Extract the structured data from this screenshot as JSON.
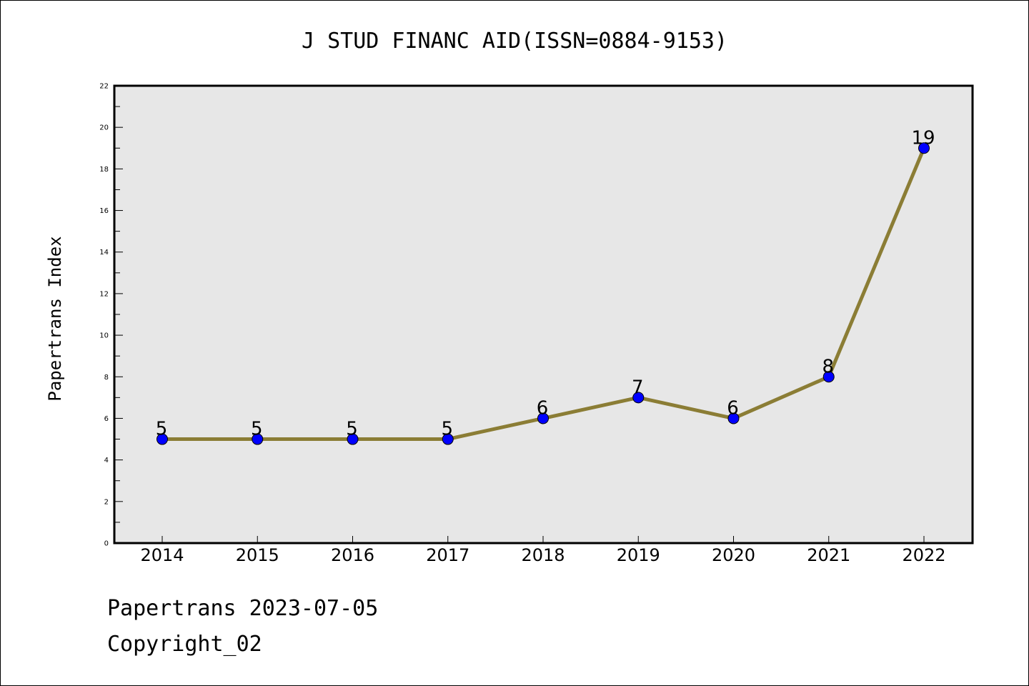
{
  "chart_data": {
    "type": "line",
    "title": "J STUD FINANC AID(ISSN=0884-9153)",
    "xlabel": "",
    "ylabel": "Papertrans Index",
    "categories": [
      "2014",
      "2015",
      "2016",
      "2017",
      "2018",
      "2019",
      "2020",
      "2021",
      "2022"
    ],
    "values": [
      5,
      5,
      5,
      5,
      6,
      7,
      6,
      8,
      19
    ],
    "data_labels": [
      "5",
      "5",
      "5",
      "5",
      "6",
      "7",
      "6",
      "8",
      "19"
    ],
    "ylim": [
      0,
      22
    ],
    "yticks": [
      "0",
      "2",
      "4",
      "6",
      "8",
      "10",
      "12",
      "14",
      "16",
      "18",
      "20",
      "22"
    ],
    "grid": false,
    "legend": "none",
    "colors": {
      "line": "#8b7d35",
      "marker": "#0000ff",
      "plot_background": "#e7e7e7",
      "axis": "#000000"
    }
  },
  "footer": {
    "line1": "Papertrans 2023-07-05",
    "line2": "Copyright_02"
  }
}
